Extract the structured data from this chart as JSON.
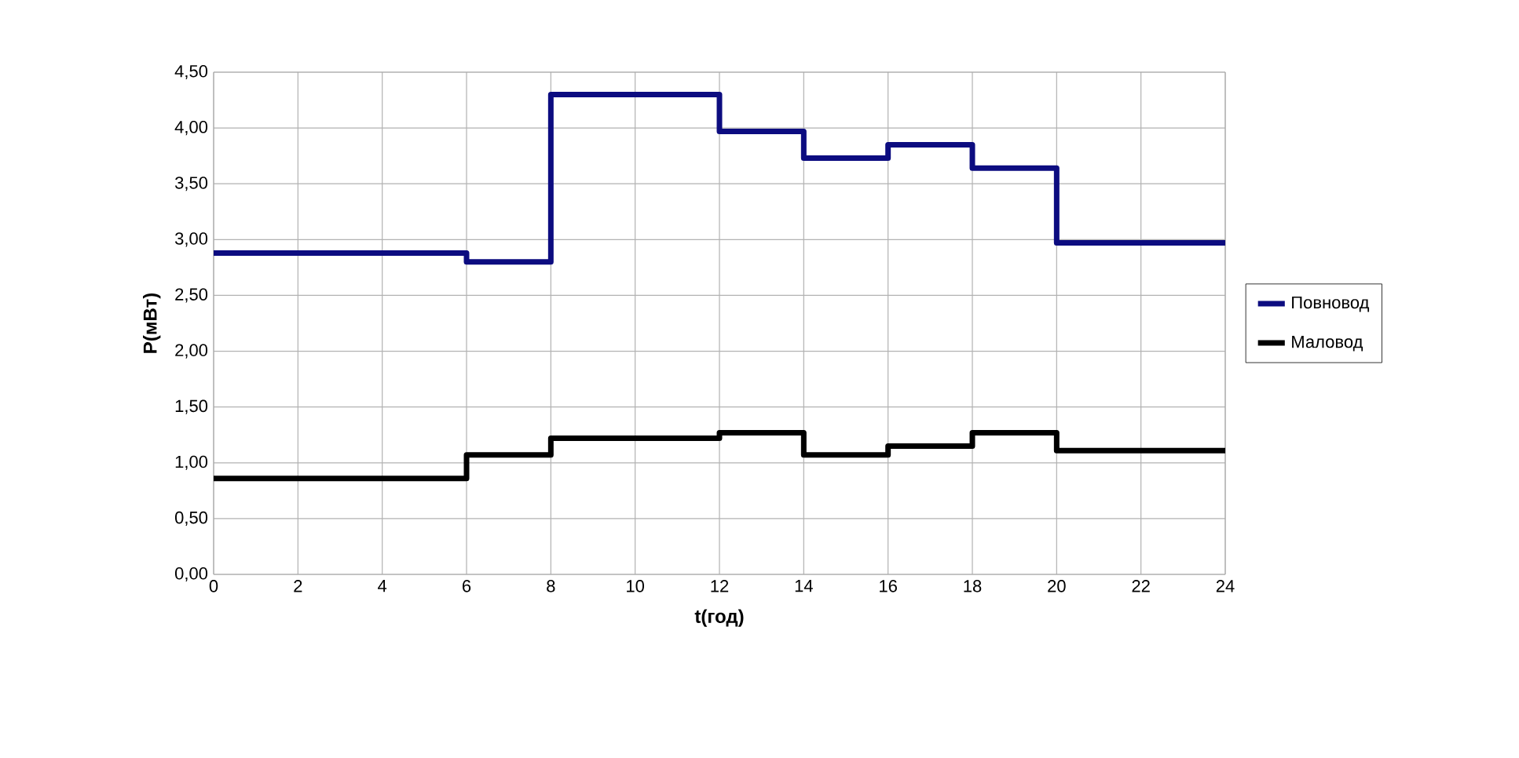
{
  "chart_data": {
    "type": "step",
    "xlabel": "t(год)",
    "ylabel": "P(мВт)",
    "x": [
      0,
      6,
      8,
      12,
      14,
      16,
      18,
      20,
      24
    ],
    "series": [
      {
        "name": "Повновод",
        "color": "#0c0c80",
        "values": [
          2.88,
          2.8,
          4.3,
          3.97,
          3.73,
          3.85,
          3.64,
          2.97,
          2.97
        ]
      },
      {
        "name": "Маловод",
        "color": "#000000",
        "values": [
          0.86,
          1.07,
          1.22,
          1.27,
          1.07,
          1.15,
          1.27,
          1.11,
          1.11
        ]
      }
    ],
    "xlim": [
      0,
      24
    ],
    "xticks": [
      0,
      2,
      4,
      6,
      8,
      10,
      12,
      14,
      16,
      18,
      20,
      22,
      24
    ],
    "ylim": [
      0,
      4.5
    ],
    "yticks": [
      {
        "value": 0,
        "label": "0,00"
      },
      {
        "value": 0.5,
        "label": "0,50"
      },
      {
        "value": 1,
        "label": "1,00"
      },
      {
        "value": 1.5,
        "label": "1,50"
      },
      {
        "value": 2,
        "label": "2,00"
      },
      {
        "value": 2.5,
        "label": "2,50"
      },
      {
        "value": 3,
        "label": "3,00"
      },
      {
        "value": 3.5,
        "label": "3,50"
      },
      {
        "value": 4,
        "label": "4,00"
      },
      {
        "value": 4.5,
        "label": "4,50"
      }
    ],
    "grid": true,
    "legend": "right",
    "line_style": "solid"
  }
}
